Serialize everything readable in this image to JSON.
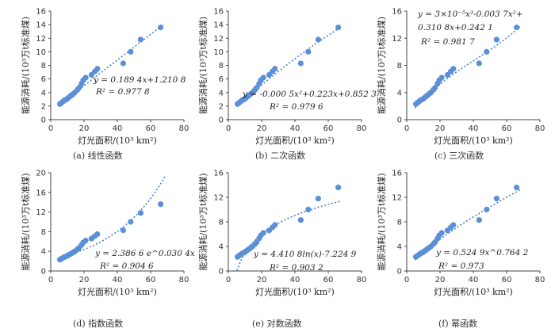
{
  "figure": {
    "shared_xlabel": "灯光面积/(10³ km²)",
    "shared_ylabel": "能源消耗/(10³万t标准煤)",
    "point_color": "#5b8fd6",
    "trend_color": "#4a7fc8"
  },
  "chart_data": [
    {
      "type": "scatter",
      "caption": "(a) 线性函数",
      "xlabel": "灯光面积/(10³ km²)",
      "ylabel": "能源消耗/(10³万t标准煤)",
      "xlim": [
        0,
        80
      ],
      "ylim": [
        0,
        16
      ],
      "xticks": [
        0,
        20,
        40,
        60,
        80
      ],
      "yticks": [
        0,
        2,
        4,
        6,
        8,
        10,
        12,
        14,
        16
      ],
      "fit": "linear",
      "equation": "y = 0.189 4x+1.210 8",
      "r2": "R² = 0.977 8",
      "x": [
        5.5,
        6.5,
        7.5,
        8.5,
        9.5,
        10.5,
        11.5,
        12.5,
        13.5,
        14.5,
        16.0,
        17.0,
        18.5,
        19.5,
        21.0,
        24.5,
        26.5,
        28.0,
        43.5,
        48.0,
        54.0,
        66.0
      ],
      "y": [
        2.3,
        2.5,
        2.7,
        2.9,
        3.0,
        3.2,
        3.4,
        3.6,
        3.8,
        4.0,
        4.4,
        4.7,
        5.3,
        5.8,
        6.2,
        6.6,
        7.1,
        7.5,
        8.3,
        10.0,
        11.8,
        13.6
      ]
    },
    {
      "type": "scatter",
      "caption": "(b) 二次函数",
      "xlabel": "灯光面积/(10³ km²)",
      "ylabel": "能源消耗/(10³万t标准煤)",
      "xlim": [
        0,
        80
      ],
      "ylim": [
        0,
        16
      ],
      "xticks": [
        0,
        20,
        40,
        60,
        80
      ],
      "yticks": [
        0,
        2,
        4,
        6,
        8,
        10,
        12,
        14,
        16
      ],
      "fit": "quadratic",
      "equation": "y = -0.000 5x²+0.223x+0.852 3",
      "r2": "R² = 0.979 6",
      "x": [
        5.5,
        6.5,
        7.5,
        8.5,
        9.5,
        10.5,
        11.5,
        12.5,
        13.5,
        14.5,
        16.0,
        17.0,
        18.5,
        19.5,
        21.0,
        24.5,
        26.5,
        28.0,
        43.5,
        48.0,
        54.0,
        66.0
      ],
      "y": [
        2.3,
        2.5,
        2.7,
        2.9,
        3.0,
        3.2,
        3.4,
        3.6,
        3.8,
        4.0,
        4.4,
        4.7,
        5.3,
        5.8,
        6.2,
        6.6,
        7.1,
        7.5,
        8.3,
        10.0,
        11.8,
        13.6
      ]
    },
    {
      "type": "scatter",
      "caption": "(c) 三次函数",
      "xlabel": "灯光面积/(10³ km²)",
      "ylabel": "能源消耗/(10³万t标准煤)",
      "xlim": [
        0,
        80
      ],
      "ylim": [
        0,
        16
      ],
      "xticks": [
        0,
        20,
        40,
        60,
        80
      ],
      "yticks": [
        0,
        4,
        8,
        12,
        16
      ],
      "fit": "cubic",
      "equation": "y = 3×10⁻⁵x³-0.003 7x²+",
      "equation2": "0.310 8x+0.242 1",
      "r2": "R² = 0.981 7",
      "x": [
        5.5,
        6.5,
        7.5,
        8.5,
        9.5,
        10.5,
        11.5,
        12.5,
        13.5,
        14.5,
        16.0,
        17.0,
        18.5,
        19.5,
        21.0,
        24.5,
        26.5,
        28.0,
        43.5,
        48.0,
        54.0,
        66.0
      ],
      "y": [
        2.3,
        2.5,
        2.7,
        2.9,
        3.0,
        3.2,
        3.4,
        3.6,
        3.8,
        4.0,
        4.4,
        4.7,
        5.3,
        5.8,
        6.2,
        6.6,
        7.1,
        7.5,
        8.3,
        10.0,
        11.8,
        13.6
      ]
    },
    {
      "type": "scatter",
      "caption": "(d) 指数函数",
      "xlabel": "灯光面积/(10³ km²)",
      "ylabel": "能源消耗/(10³万t标准煤)",
      "xlim": [
        0,
        80
      ],
      "ylim": [
        0,
        20
      ],
      "xticks": [
        0,
        20,
        40,
        60,
        80
      ],
      "yticks": [
        0,
        4,
        8,
        12,
        16,
        20
      ],
      "fit": "exponential",
      "equation": "y = 2.386 6 e^0.030 4x",
      "r2": "R² = 0.904 6",
      "x": [
        5.5,
        6.5,
        7.5,
        8.5,
        9.5,
        10.5,
        11.5,
        12.5,
        13.5,
        14.5,
        16.0,
        17.0,
        18.5,
        19.5,
        21.0,
        24.5,
        26.5,
        28.0,
        43.5,
        48.0,
        54.0,
        66.0
      ],
      "y": [
        2.3,
        2.5,
        2.7,
        2.9,
        3.0,
        3.2,
        3.4,
        3.6,
        3.8,
        4.0,
        4.4,
        4.7,
        5.3,
        5.8,
        6.2,
        6.6,
        7.1,
        7.5,
        8.3,
        10.0,
        11.8,
        13.6
      ]
    },
    {
      "type": "scatter",
      "caption": "(e) 对数函数",
      "xlabel": "灯光面积/(10³ km²)",
      "ylabel": "能源消耗/(10³万t标准煤)",
      "xlim": [
        0,
        80
      ],
      "ylim": [
        0,
        16
      ],
      "xticks": [
        0,
        20,
        40,
        60,
        80
      ],
      "yticks": [
        0,
        4,
        8,
        12,
        16
      ],
      "fit": "logarithmic",
      "equation": "y = 4.410 8ln(x)-7.224 9",
      "r2": "R² = 0.903 2",
      "x": [
        5.5,
        6.5,
        7.5,
        8.5,
        9.5,
        10.5,
        11.5,
        12.5,
        13.5,
        14.5,
        16.0,
        17.0,
        18.5,
        19.5,
        21.0,
        24.5,
        26.5,
        28.0,
        43.5,
        48.0,
        54.0,
        66.0
      ],
      "y": [
        2.3,
        2.5,
        2.7,
        2.9,
        3.0,
        3.2,
        3.4,
        3.6,
        3.8,
        4.0,
        4.4,
        4.7,
        5.3,
        5.8,
        6.2,
        6.6,
        7.1,
        7.5,
        8.3,
        10.0,
        11.8,
        13.6
      ]
    },
    {
      "type": "scatter",
      "caption": "(f) 幂函数",
      "xlabel": "灯光面积/(10³ km²)",
      "ylabel": "能源消耗/(10³万t标准煤)",
      "xlim": [
        0,
        80
      ],
      "ylim": [
        0,
        16
      ],
      "xticks": [
        0,
        20,
        40,
        60,
        80
      ],
      "yticks": [
        0,
        4,
        8,
        12,
        16
      ],
      "fit": "power",
      "equation": "y = 0.524 9x^0.764 2",
      "r2": "R² = 0.973",
      "x": [
        5.5,
        6.5,
        7.5,
        8.5,
        9.5,
        10.5,
        11.5,
        12.5,
        13.5,
        14.5,
        16.0,
        17.0,
        18.5,
        19.5,
        21.0,
        24.5,
        26.5,
        28.0,
        43.5,
        48.0,
        54.0,
        66.0
      ],
      "y": [
        2.3,
        2.5,
        2.7,
        2.9,
        3.0,
        3.2,
        3.4,
        3.6,
        3.8,
        4.0,
        4.4,
        4.7,
        5.3,
        5.8,
        6.2,
        6.6,
        7.1,
        7.5,
        8.3,
        10.0,
        11.8,
        13.6
      ]
    }
  ]
}
